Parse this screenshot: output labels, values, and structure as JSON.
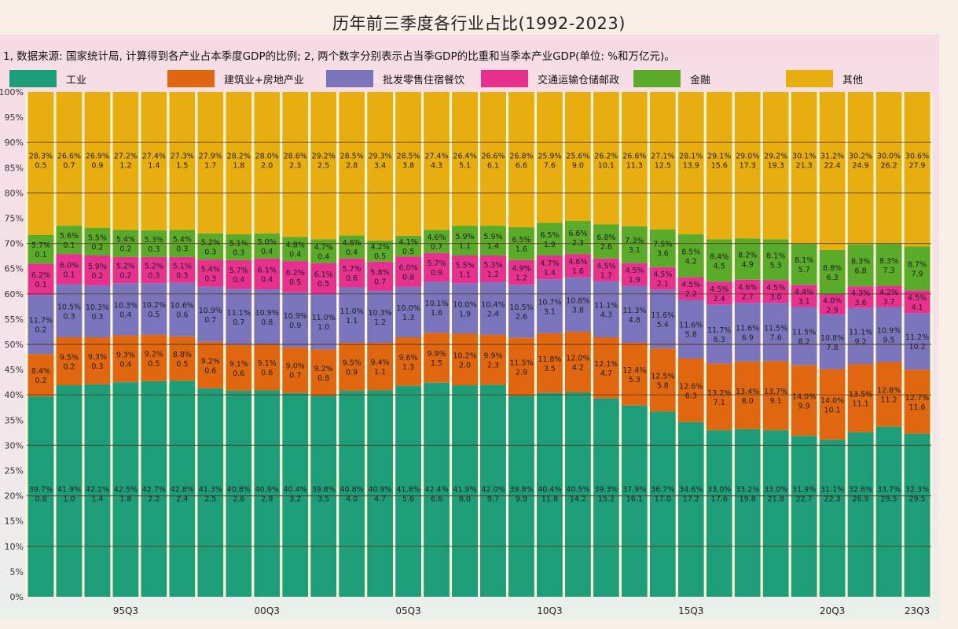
{
  "chart_data": {
    "type": "bar",
    "stacked": true,
    "title": "历年前三季度各行业占比(1992-2023)",
    "note": "1, 数据来源: 国家统计局, 计算得到各产业占本季度GDP的比例; 2, 两个数字分别表示占当季GDP的比重和当季本产业GDP(单位: %和万亿元)。",
    "xlabel": "",
    "ylabel": "",
    "ylim": [
      0,
      100
    ],
    "yticks": [
      "0%",
      "5%",
      "10%",
      "15%",
      "20%",
      "25%",
      "30%",
      "35%",
      "40%",
      "45%",
      "50%",
      "55%",
      "60%",
      "65%",
      "70%",
      "75%",
      "80%",
      "85%",
      "90%",
      "95%",
      "100%"
    ],
    "grid": true,
    "legend_position": "top",
    "categories": [
      "92Q3",
      "93Q3",
      "94Q3",
      "95Q3",
      "96Q3",
      "97Q3",
      "98Q3",
      "99Q3",
      "00Q3",
      "01Q3",
      "02Q3",
      "03Q3",
      "04Q3",
      "05Q3",
      "06Q3",
      "07Q3",
      "08Q3",
      "09Q3",
      "10Q3",
      "11Q3",
      "12Q3",
      "13Q3",
      "14Q3",
      "15Q3",
      "16Q3",
      "17Q3",
      "18Q3",
      "19Q3",
      "20Q3",
      "21Q3",
      "22Q3",
      "23Q3"
    ],
    "xtick_labels": [
      {
        "index": 3,
        "label": "95Q3"
      },
      {
        "index": 8,
        "label": "00Q3"
      },
      {
        "index": 13,
        "label": "05Q3"
      },
      {
        "index": 18,
        "label": "10Q3"
      },
      {
        "index": 23,
        "label": "15Q3"
      },
      {
        "index": 28,
        "label": "20Q3"
      },
      {
        "index": 31,
        "label": "23Q3"
      }
    ],
    "series": [
      {
        "name": "工业",
        "color": "#1e9e78",
        "values": [
          39.7,
          41.9,
          42.1,
          42.5,
          42.7,
          42.8,
          41.3,
          40.8,
          40.9,
          40.4,
          39.8,
          40.8,
          40.9,
          41.8,
          42.4,
          41.9,
          42.0,
          39.8,
          40.4,
          40.5,
          39.3,
          37.9,
          36.7,
          34.6,
          33.0,
          33.2,
          33.0,
          31.9,
          31.1,
          32.6,
          33.7,
          32.3
        ],
        "gdp": [
          0.8,
          1.0,
          1.4,
          1.8,
          2.2,
          2.4,
          2.5,
          2.6,
          2.9,
          3.2,
          3.5,
          4.0,
          4.7,
          5.6,
          6.6,
          8.0,
          9.7,
          9.9,
          11.8,
          14.2,
          15.2,
          16.1,
          17.0,
          17.2,
          17.6,
          19.8,
          21.8,
          22.7,
          22.3,
          26.9,
          29.5,
          29.5
        ]
      },
      {
        "name": "建筑业+房地产业",
        "color": "#e0660f",
        "values": [
          8.4,
          9.5,
          9.3,
          9.3,
          9.2,
          8.8,
          9.2,
          9.1,
          9.1,
          9.0,
          9.2,
          9.5,
          9.4,
          9.6,
          9.9,
          10.2,
          9.9,
          11.5,
          11.8,
          12.0,
          12.1,
          12.4,
          12.5,
          12.6,
          13.2,
          13.4,
          13.7,
          14.0,
          14.0,
          13.5,
          12.8,
          12.7
        ],
        "gdp": [
          0.2,
          0.2,
          0.3,
          0.4,
          0.5,
          0.5,
          0.6,
          0.6,
          0.6,
          0.7,
          0.8,
          0.9,
          1.1,
          1.3,
          1.5,
          2.0,
          2.3,
          2.9,
          3.5,
          4.2,
          4.7,
          5.3,
          5.8,
          6.3,
          7.1,
          8.0,
          9.1,
          9.9,
          10.1,
          11.1,
          11.2,
          11.6
        ]
      },
      {
        "name": "批发零售住宿餐饮",
        "color": "#7a74bd",
        "values": [
          11.7,
          10.5,
          10.3,
          10.3,
          10.2,
          10.6,
          10.9,
          11.1,
          10.9,
          10.9,
          11.0,
          11.0,
          10.3,
          10.0,
          10.1,
          10.0,
          10.4,
          10.5,
          10.7,
          10.8,
          11.1,
          11.3,
          11.6,
          11.6,
          11.7,
          11.6,
          11.5,
          11.5,
          10.8,
          11.1,
          10.9,
          11.2
        ],
        "gdp": [
          0.2,
          0.3,
          0.3,
          0.4,
          0.5,
          0.6,
          0.7,
          0.7,
          0.8,
          0.9,
          1.0,
          1.1,
          1.2,
          1.3,
          1.6,
          1.9,
          2.4,
          2.6,
          3.1,
          3.8,
          4.3,
          4.8,
          5.4,
          5.8,
          6.3,
          6.9,
          7.6,
          8.2,
          7.8,
          9.2,
          9.5,
          10.2
        ]
      },
      {
        "name": "交通运输仓储邮政",
        "color": "#e8308f",
        "values": [
          6.2,
          6.0,
          5.9,
          5.2,
          5.2,
          5.1,
          5.4,
          5.7,
          6.1,
          6.2,
          6.1,
          5.7,
          5.8,
          6.0,
          5.7,
          5.5,
          5.3,
          4.9,
          4.7,
          4.6,
          4.5,
          4.5,
          4.5,
          4.5,
          4.5,
          4.6,
          4.5,
          4.4,
          4.0,
          4.3,
          4.2,
          4.5
        ],
        "gdp": [
          0.1,
          0.1,
          0.2,
          0.2,
          0.3,
          0.3,
          0.3,
          0.4,
          0.4,
          0.5,
          0.5,
          0.6,
          0.7,
          0.8,
          0.9,
          1.1,
          1.2,
          1.2,
          1.4,
          1.6,
          1.7,
          1.9,
          2.1,
          2.2,
          2.4,
          2.7,
          3.0,
          3.1,
          2.9,
          3.6,
          3.7,
          4.1
        ]
      },
      {
        "name": "金融",
        "color": "#5aab2a",
        "values": [
          5.7,
          5.6,
          5.5,
          5.4,
          5.3,
          5.4,
          5.2,
          5.1,
          5.0,
          4.8,
          4.7,
          4.6,
          4.2,
          4.1,
          4.6,
          5.9,
          5.9,
          6.5,
          6.5,
          6.6,
          6.8,
          7.3,
          7.5,
          8.5,
          8.4,
          8.2,
          8.1,
          8.1,
          8.8,
          8.3,
          8.3,
          8.7
        ],
        "gdp": [
          0.1,
          0.1,
          0.2,
          0.2,
          0.3,
          0.3,
          0.3,
          0.3,
          0.4,
          0.4,
          0.4,
          0.4,
          0.5,
          0.5,
          0.7,
          1.1,
          1.4,
          1.6,
          1.9,
          2.3,
          2.6,
          3.1,
          3.6,
          4.2,
          4.5,
          4.9,
          5.3,
          5.7,
          6.3,
          6.8,
          7.3,
          7.9
        ]
      },
      {
        "name": "其他",
        "color": "#e8ae10",
        "values": [
          28.3,
          26.6,
          26.9,
          27.2,
          27.4,
          27.3,
          27.9,
          28.2,
          28.0,
          28.6,
          29.2,
          28.5,
          29.3,
          28.5,
          27.4,
          26.4,
          26.6,
          26.8,
          25.9,
          25.6,
          26.2,
          26.6,
          27.1,
          28.1,
          29.1,
          29.0,
          29.2,
          30.1,
          31.2,
          30.2,
          30.0,
          30.6
        ],
        "gdp": [
          0.5,
          0.7,
          0.9,
          1.2,
          1.4,
          1.5,
          1.7,
          1.8,
          2.0,
          2.3,
          2.5,
          2.8,
          3.4,
          3.8,
          4.3,
          5.1,
          6.1,
          6.6,
          7.6,
          9.0,
          10.1,
          11.3,
          12.5,
          13.9,
          15.6,
          17.3,
          19.3,
          21.3,
          22.4,
          24.9,
          26.2,
          27.9
        ]
      }
    ]
  }
}
